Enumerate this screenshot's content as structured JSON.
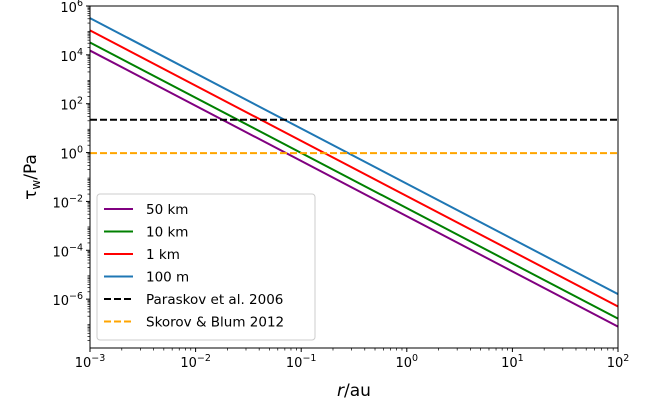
{
  "chart_data": {
    "type": "line",
    "title": "",
    "xlabel": {
      "var": "r",
      "unit": "/au"
    },
    "ylabel": {
      "var": "τ",
      "sub": "w",
      "unit": "/Pa"
    },
    "x_scale": "log",
    "y_scale": "log",
    "xlim": [
      0.001,
      100
    ],
    "ylim": [
      1e-08,
      1000000
    ],
    "x_ticks": [
      {
        "value": 0.001,
        "base": "10",
        "exp": "−3"
      },
      {
        "value": 0.01,
        "base": "10",
        "exp": "−2"
      },
      {
        "value": 0.1,
        "base": "10",
        "exp": "−1"
      },
      {
        "value": 1,
        "base": "10",
        "exp": "0"
      },
      {
        "value": 10,
        "base": "10",
        "exp": "1"
      },
      {
        "value": 100,
        "base": "10",
        "exp": "2"
      }
    ],
    "y_ticks": [
      {
        "value": 1e-06,
        "base": "10",
        "exp": "−6"
      },
      {
        "value": 0.0001,
        "base": "10",
        "exp": "−4"
      },
      {
        "value": 0.01,
        "base": "10",
        "exp": "−2"
      },
      {
        "value": 1,
        "base": "10",
        "exp": "0"
      },
      {
        "value": 100,
        "base": "10",
        "exp": "2"
      },
      {
        "value": 10000,
        "base": "10",
        "exp": "4"
      },
      {
        "value": 1000000,
        "base": "10",
        "exp": "6"
      }
    ],
    "grid": false,
    "legend_position": "lower-left",
    "series": [
      {
        "name": "50 km",
        "color": "#800080",
        "style": "solid",
        "x": [
          0.001,
          100
        ],
        "y": [
          15000,
          7.5e-08
        ]
      },
      {
        "name": "10 km",
        "color": "#008000",
        "style": "solid",
        "x": [
          0.001,
          100
        ],
        "y": [
          32000,
          1.6e-07
        ]
      },
      {
        "name": "1 km",
        "color": "#ff0000",
        "style": "solid",
        "x": [
          0.001,
          100
        ],
        "y": [
          100000,
          5e-07
        ]
      },
      {
        "name": "100 m",
        "color": "#1f77b4",
        "style": "solid",
        "x": [
          0.001,
          100
        ],
        "y": [
          320000,
          1.6e-06
        ]
      },
      {
        "name": "Paraskov et al. 2006",
        "color": "#000000",
        "style": "dashed",
        "x": [
          0.001,
          100
        ],
        "y": [
          22,
          22
        ]
      },
      {
        "name": "Skorov & Blum 2012",
        "color": "#ffa500",
        "style": "dashed",
        "x": [
          0.001,
          100
        ],
        "y": [
          0.95,
          0.95
        ]
      }
    ]
  }
}
